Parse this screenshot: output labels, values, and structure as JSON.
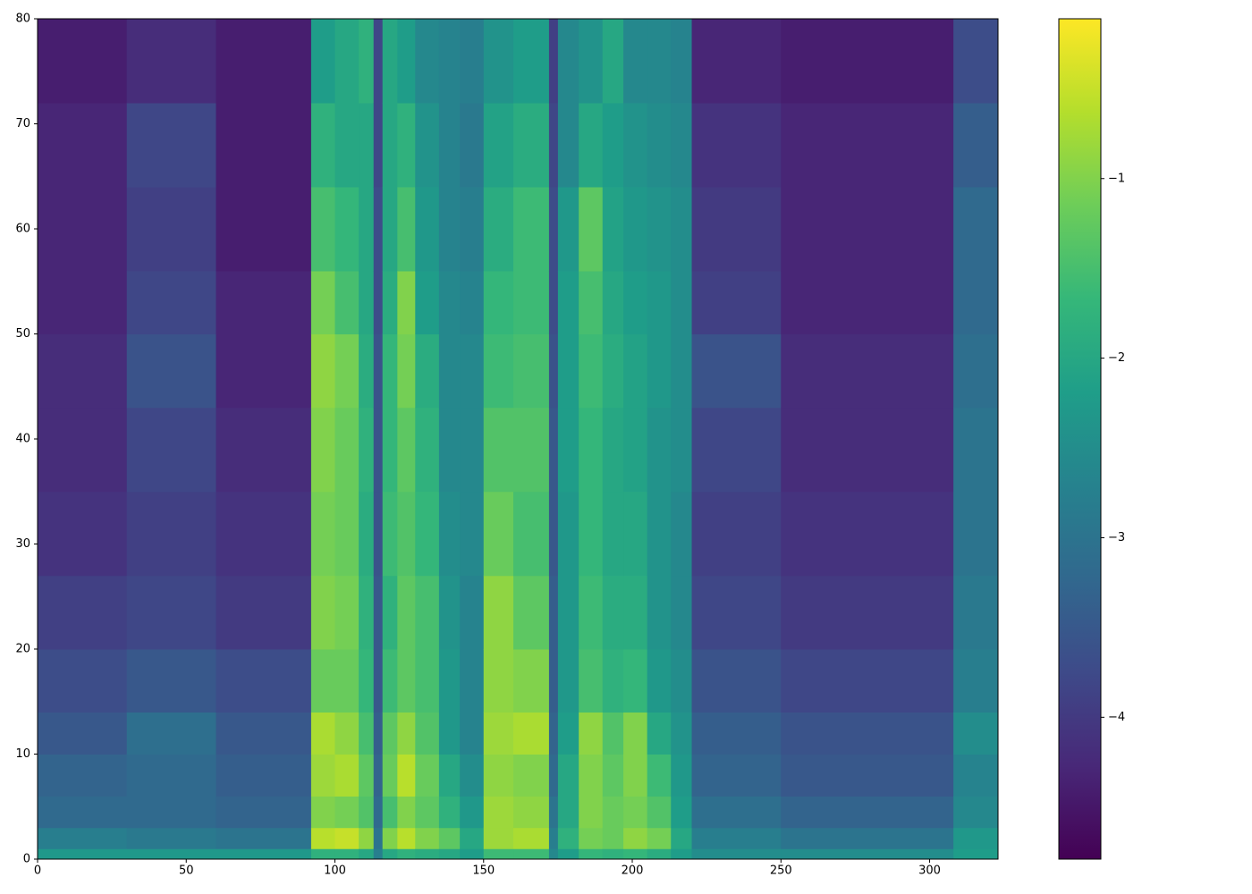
{
  "chart_data": {
    "type": "heatmap",
    "colormap": "viridis",
    "x_edges": [
      0,
      30,
      60,
      92,
      100,
      108,
      113,
      116,
      121,
      127,
      135,
      142,
      150,
      160,
      172,
      175,
      182,
      190,
      197,
      205,
      213,
      220,
      250,
      308,
      323
    ],
    "y_edges": [
      0,
      1,
      3,
      6,
      10,
      14,
      20,
      27,
      35,
      43,
      50,
      56,
      64,
      72,
      80
    ],
    "values": [
      [
        -2.3,
        -2.8,
        -3.2,
        -3.3,
        -3.5,
        -3.7,
        -3.9,
        -4.1,
        -4.2,
        -4.2,
        -4.3,
        -4.3,
        -4.3,
        -4.4
      ],
      [
        -2.3,
        -2.9,
        -3.2,
        -3.2,
        -3.1,
        -3.5,
        -3.8,
        -3.9,
        -3.8,
        -3.6,
        -3.8,
        -3.9,
        -3.8,
        -4.2
      ],
      [
        -2.3,
        -3.0,
        -3.3,
        -3.4,
        -3.5,
        -3.7,
        -4.0,
        -4.1,
        -4.2,
        -4.3,
        -4.3,
        -4.4,
        -4.4,
        -4.4
      ],
      [
        -1.8,
        -0.6,
        -1.0,
        -0.8,
        -0.7,
        -1.2,
        -1.0,
        -1.1,
        -1.0,
        -0.9,
        -1.1,
        -1.5,
        -1.8,
        -2.2
      ],
      [
        -1.8,
        -0.5,
        -1.1,
        -0.7,
        -0.9,
        -1.2,
        -1.1,
        -1.2,
        -1.2,
        -1.1,
        -1.5,
        -1.7,
        -2.0,
        -2.0
      ],
      [
        -2.0,
        -0.9,
        -1.4,
        -1.3,
        -1.5,
        -1.7,
        -1.8,
        -1.9,
        -1.8,
        -1.9,
        -2.0,
        -2.0,
        -2.0,
        -1.8
      ],
      [
        -2.8,
        -3.0,
        -3.2,
        -3.3,
        -3.4,
        -3.5,
        -3.5,
        -3.6,
        -3.6,
        -3.6,
        -3.7,
        -3.7,
        -3.8,
        -3.8
      ],
      [
        -2.0,
        -1.0,
        -1.5,
        -1.2,
        -1.3,
        -1.6,
        -1.8,
        -1.6,
        -1.7,
        -1.7,
        -1.9,
        -2.0,
        -2.0,
        -2.0
      ],
      [
        -1.8,
        -0.6,
        -1.0,
        -0.6,
        -0.9,
        -1.3,
        -1.3,
        -1.4,
        -1.3,
        -1.1,
        -1.0,
        -1.5,
        -1.8,
        -2.2
      ],
      [
        -1.9,
        -1.0,
        -1.3,
        -1.2,
        -1.4,
        -1.5,
        -1.5,
        -1.7,
        -1.8,
        -1.9,
        -2.2,
        -2.3,
        -2.4,
        -2.6
      ],
      [
        -2.0,
        -1.3,
        -1.8,
        -2.0,
        -2.3,
        -2.3,
        -2.4,
        -2.5,
        -2.6,
        -2.6,
        -2.6,
        -2.7,
        -2.7,
        -2.7
      ],
      [
        -2.2,
        -2.0,
        -2.3,
        -2.5,
        -2.7,
        -2.7,
        -2.7,
        -2.6,
        -2.6,
        -2.6,
        -2.7,
        -2.8,
        -2.9,
        -2.8
      ],
      [
        -1.6,
        -0.8,
        -0.8,
        -0.9,
        -0.8,
        -0.9,
        -0.9,
        -1.2,
        -1.4,
        -1.6,
        -1.7,
        -1.9,
        -2.1,
        -2.4
      ],
      [
        -1.6,
        -0.7,
        -0.9,
        -1.0,
        -0.7,
        -1.0,
        -1.3,
        -1.5,
        -1.4,
        -1.5,
        -1.6,
        -1.6,
        -1.9,
        -2.2
      ],
      [
        -2.6,
        -2.8,
        -3.0,
        -3.2,
        -3.3,
        -3.4,
        -3.4,
        -3.5,
        -3.5,
        -3.6,
        -3.7,
        -3.7,
        -3.8,
        -3.9
      ],
      [
        -2.2,
        -1.8,
        -2.0,
        -2.0,
        -2.2,
        -2.3,
        -2.3,
        -2.3,
        -2.2,
        -2.2,
        -2.2,
        -2.3,
        -2.6,
        -2.6
      ],
      [
        -1.7,
        -1.1,
        -1.0,
        -1.0,
        -0.9,
        -1.5,
        -1.6,
        -1.7,
        -1.7,
        -1.6,
        -1.5,
        -1.3,
        -2.0,
        -2.4
      ],
      [
        -1.8,
        -1.2,
        -1.2,
        -1.3,
        -1.4,
        -1.8,
        -1.9,
        -2.0,
        -2.0,
        -1.9,
        -2.0,
        -2.1,
        -2.2,
        -2.0
      ],
      [
        -1.7,
        -0.9,
        -1.1,
        -1.0,
        -1.0,
        -1.7,
        -1.9,
        -2.0,
        -2.1,
        -2.1,
        -2.2,
        -2.3,
        -2.4,
        -2.6
      ],
      [
        -1.9,
        -1.1,
        -1.4,
        -1.6,
        -2.0,
        -2.3,
        -2.4,
        -2.4,
        -2.4,
        -2.3,
        -2.3,
        -2.4,
        -2.5,
        -2.6
      ],
      [
        -2.2,
        -2.0,
        -2.2,
        -2.3,
        -2.4,
        -2.5,
        -2.6,
        -2.6,
        -2.5,
        -2.5,
        -2.5,
        -2.5,
        -2.6,
        -2.7
      ],
      [
        -2.5,
        -2.8,
        -3.1,
        -3.3,
        -3.4,
        -3.6,
        -3.8,
        -3.9,
        -3.8,
        -3.6,
        -3.9,
        -4.0,
        -4.1,
        -4.3
      ],
      [
        -2.5,
        -3.0,
        -3.3,
        -3.5,
        -3.6,
        -3.8,
        -4.0,
        -4.1,
        -4.2,
        -4.2,
        -4.3,
        -4.3,
        -4.3,
        -4.4
      ],
      [
        -2.2,
        -2.3,
        -2.6,
        -2.7,
        -2.5,
        -2.8,
        -2.9,
        -3.0,
        -3.0,
        -3.1,
        -3.2,
        -3.2,
        -3.4,
        -3.7
      ]
    ],
    "xlim": [
      0,
      323
    ],
    "ylim": [
      0,
      80
    ],
    "xticks": [
      0,
      50,
      100,
      150,
      200,
      250,
      300
    ],
    "yticks": [
      0,
      10,
      20,
      30,
      40,
      50,
      60,
      70,
      80
    ],
    "clim": [
      -4.79,
      -0.11
    ],
    "cticks": [
      {
        "value": -1,
        "label": "−1"
      },
      {
        "value": -2,
        "label": "−2"
      },
      {
        "value": -3,
        "label": "−3"
      },
      {
        "value": -4,
        "label": "−4"
      }
    ]
  }
}
